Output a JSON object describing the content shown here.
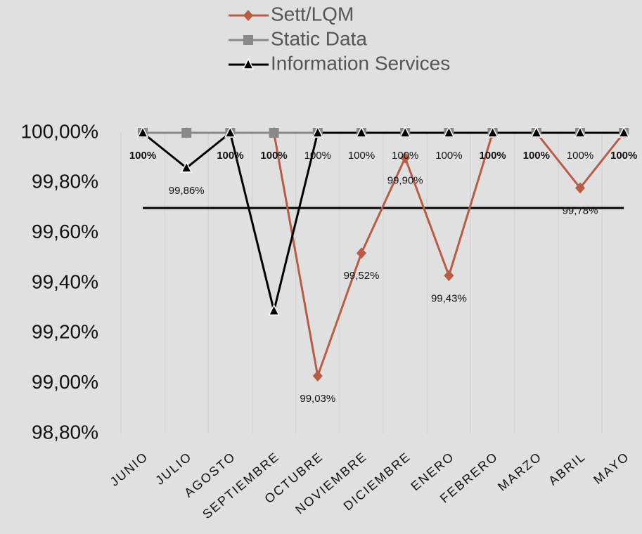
{
  "chart_data": {
    "type": "line",
    "categories": [
      "JUNIO",
      "JULIO",
      "AGOSTO",
      "SEPTIEMBRE",
      "OCTUBRE",
      "NOVIEMBRE",
      "DICIEMBRE",
      "ENERO",
      "FEBRERO",
      "MARZO",
      "ABRIL",
      "MAYO"
    ],
    "series": [
      {
        "name": "Sett/LQM",
        "color": "#b85c45",
        "marker": "diamond",
        "values": [
          100,
          100,
          100,
          100,
          99.03,
          99.52,
          99.9,
          99.43,
          100,
          100,
          99.78,
          100
        ],
        "value_labels": [
          null,
          null,
          null,
          null,
          "99,03%",
          "99,52%",
          "99,90%",
          "99,43%",
          null,
          null,
          "99,78%",
          null
        ]
      },
      {
        "name": "Static Data",
        "color": "#888888",
        "marker": "square",
        "values": [
          100,
          100,
          100,
          100,
          100,
          100,
          100,
          100,
          100,
          100,
          100,
          100
        ],
        "value_labels": [
          "100%",
          null,
          "100%",
          "100%",
          null,
          null,
          null,
          null,
          "100%",
          "100%",
          null,
          "100%"
        ]
      },
      {
        "name": "Information Services",
        "color": "#000000",
        "marker": "triangle",
        "values": [
          100,
          99.86,
          100,
          99.29,
          100,
          100,
          100,
          100,
          100,
          100,
          100,
          100
        ],
        "value_labels": [
          null,
          "99,86%",
          null,
          null,
          "100%",
          "100%",
          "100%",
          "100%",
          null,
          null,
          "100%",
          null
        ]
      }
    ],
    "reference_value": 99.7,
    "ylim": [
      98.8,
      100
    ],
    "yticks": [
      {
        "value": 98.8,
        "label": "98,80%"
      },
      {
        "value": 99.0,
        "label": "99,00%"
      },
      {
        "value": 99.2,
        "label": "99,20%"
      },
      {
        "value": 99.4,
        "label": "99,40%"
      },
      {
        "value": 99.6,
        "label": "99,60%"
      },
      {
        "value": 99.8,
        "label": "99,80%"
      },
      {
        "value": 100,
        "label": "100,00%"
      }
    ],
    "grid": true,
    "legend": "top"
  }
}
